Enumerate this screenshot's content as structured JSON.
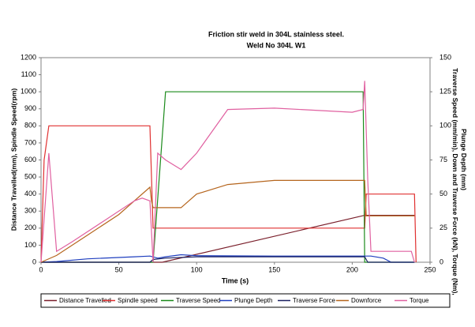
{
  "chart_data": {
    "type": "line",
    "title": [
      "Friction stir weld in 304L stainless steel.",
      "Weld No 304L W1"
    ],
    "xlabel": "Time (s)",
    "ylabel": "Distance Travelled(mm), Spindle Speed(rpm)",
    "y2label": [
      "Traverse Speed (mm/min), Down and Traverse Force (kN), Torque (Nm),",
      "Plunge Depth (mm)"
    ],
    "xlim": [
      0,
      250
    ],
    "xticks": [
      0,
      50,
      100,
      150,
      200,
      250
    ],
    "ylim": [
      0,
      1200
    ],
    "yticks": [
      0,
      100,
      200,
      300,
      400,
      500,
      600,
      700,
      800,
      900,
      1000,
      1100,
      1200
    ],
    "y2lim": [
      0,
      150
    ],
    "y2ticks": [
      0,
      25,
      50,
      75,
      100,
      125,
      150
    ],
    "grid": false,
    "legend": "bottom",
    "series": [
      {
        "name": "Distance Travelled",
        "color": "#7a1f2b",
        "x": [
          0,
          78,
          208,
          240
        ],
        "values": [
          0,
          0,
          275,
          275
        ]
      },
      {
        "name": "Spindle speed",
        "color": "#e03030",
        "x": [
          0,
          2,
          5,
          70,
          72,
          208,
          209,
          240,
          241
        ],
        "values": [
          0,
          600,
          800,
          800,
          200,
          200,
          400,
          400,
          0
        ]
      },
      {
        "name": "Traverse Speed",
        "color": "#1a8a1a",
        "axis": "y2",
        "x": [
          0,
          72,
          80,
          207,
          208,
          240
        ],
        "values": [
          0,
          0,
          125,
          125,
          0,
          0
        ]
      },
      {
        "name": "Plunge Depth",
        "color": "#1f3fbf",
        "axis": "y2",
        "x": [
          0,
          10,
          30,
          60,
          70,
          75,
          80,
          90,
          100,
          150,
          205,
          212,
          220,
          225,
          240
        ],
        "values": [
          0,
          0.5,
          2.5,
          4,
          4.5,
          3,
          4,
          5.5,
          4.8,
          4.5,
          4.5,
          4.5,
          3,
          0,
          0
        ]
      },
      {
        "name": "Traverse Force",
        "color": "#1a2060",
        "axis": "y2",
        "x": [
          0,
          70,
          72,
          80,
          100,
          150,
          208,
          210,
          240
        ],
        "values": [
          0,
          0,
          2,
          3,
          4,
          4,
          4,
          0,
          0
        ]
      },
      {
        "name": "Downforce",
        "color": "#b5651d",
        "axis": "y2",
        "x": [
          0,
          10,
          30,
          50,
          70,
          71,
          72,
          90,
          100,
          120,
          150,
          208,
          209,
          240
        ],
        "values": [
          0,
          5,
          20,
          35,
          55,
          45,
          40,
          40,
          50,
          57,
          60,
          60,
          34,
          34
        ]
      },
      {
        "name": "Torque",
        "color": "#e060a0",
        "axis": "y2",
        "x": [
          0,
          5,
          10,
          20,
          40,
          60,
          65,
          70,
          72,
          75,
          80,
          90,
          100,
          120,
          150,
          200,
          207,
          208,
          210,
          212,
          238,
          240
        ],
        "values": [
          0,
          80,
          8,
          15,
          30,
          45,
          47,
          45,
          0,
          80,
          75,
          68,
          80,
          112,
          113,
          110,
          112,
          133,
          60,
          8,
          8,
          0
        ]
      }
    ]
  }
}
